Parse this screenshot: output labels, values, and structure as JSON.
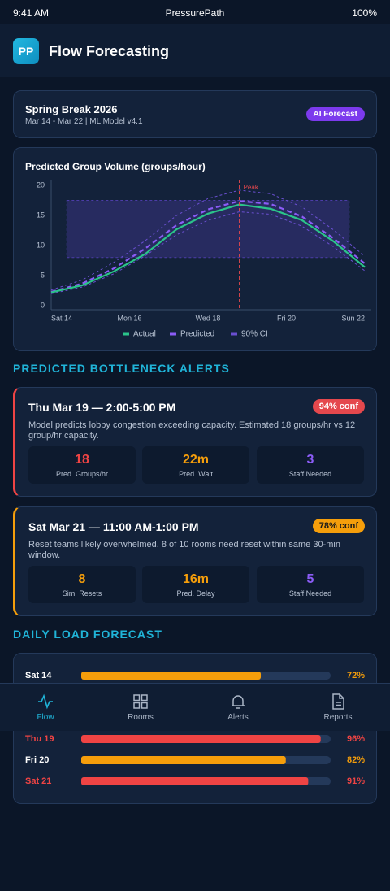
{
  "status_bar": {
    "time": "9:41 AM",
    "app": "PressurePath",
    "battery": "100%"
  },
  "header": {
    "logo": "PP",
    "title": "Flow Forecasting"
  },
  "event": {
    "title": "Spring Break 2026",
    "subtitle": "Mar 14 - Mar 22 | ML Model v4.1",
    "badge": "AI Forecast"
  },
  "chart_data": {
    "type": "line",
    "title": "Predicted Group Volume (groups/hour)",
    "x": [
      0,
      0.8,
      1.6,
      2.4,
      3.2,
      4.0,
      4.8,
      5.6,
      6.4,
      7.2,
      8.0
    ],
    "xlim": [
      0,
      8
    ],
    "xticks": [
      {
        "value": 0,
        "label": "Sat 14"
      },
      {
        "value": 2,
        "label": "Mon 16"
      },
      {
        "value": 4,
        "label": "Wed 18"
      },
      {
        "value": 6,
        "label": "Fri 20"
      },
      {
        "value": 8,
        "label": "Sun 22"
      }
    ],
    "ylim": [
      0,
      20
    ],
    "yticks": [
      0,
      5,
      10,
      15,
      20
    ],
    "band": {
      "x": [
        0.4,
        7.6
      ],
      "y": [
        8,
        17.5
      ],
      "color": "#4c3ca8"
    },
    "annotation": {
      "x": 4.8,
      "label": "Peak",
      "color": "#e5484d"
    },
    "series": [
      {
        "name": "Actual",
        "color": "#2bc48a",
        "style": "solid",
        "values": [
          2.2,
          3.4,
          5.7,
          8.6,
          12.7,
          15.3,
          16.8,
          16.1,
          14.2,
          10.7,
          6.4
        ]
      },
      {
        "name": "Predicted",
        "color": "#8b5cf6",
        "style": "dashed",
        "values": [
          2.3,
          3.7,
          6.2,
          9.5,
          13.4,
          16.0,
          17.4,
          16.9,
          14.8,
          11.2,
          7.0
        ]
      },
      {
        "name": "90% CI",
        "color": "#6a4fd0",
        "style": "dotted",
        "values": [
          2.6,
          4.3,
          7.2,
          10.8,
          15.0,
          17.8,
          19.2,
          18.6,
          16.4,
          12.6,
          8.2
        ],
        "lower": [
          2.0,
          3.1,
          5.3,
          8.3,
          11.8,
          14.2,
          15.6,
          15.2,
          13.2,
          9.8,
          5.8
        ]
      }
    ]
  },
  "alerts_section": "PREDICTED BOTTLENECK ALERTS",
  "alerts": [
    {
      "title": "Thu Mar 19 — 2:00-5:00 PM",
      "confidence": "94% conf",
      "description": "Model predicts lobby congestion exceeding capacity. Estimated 18 groups/hr vs 12 group/hr capacity.",
      "stats": [
        {
          "value": "18",
          "label": "Pred. Groups/hr"
        },
        {
          "value": "22m",
          "label": "Pred. Wait"
        },
        {
          "value": "3",
          "label": "Staff Needed"
        }
      ]
    },
    {
      "title": "Sat Mar 21 — 11:00 AM-1:00 PM",
      "confidence": "78% conf",
      "description": "Reset teams likely overwhelmed. 8 of 10 rooms need reset within same 30-min window.",
      "stats": [
        {
          "value": "8",
          "label": "Sim. Resets"
        },
        {
          "value": "16m",
          "label": "Pred. Delay"
        },
        {
          "value": "5",
          "label": "Staff Needed"
        }
      ]
    }
  ],
  "load_section": "DAILY LOAD FORECAST",
  "load_forecast": {
    "max": 100,
    "rows": [
      {
        "day": "Sat 14",
        "value": 72,
        "value_label": "72%",
        "color": "#f59e0b",
        "day_color": "#ffffff"
      },
      {
        "day": "Thu 19",
        "value": 96,
        "value_label": "96%",
        "color": "#ef4444",
        "day_color": "#ef4444"
      },
      {
        "day": "Fri 20",
        "value": 82,
        "value_label": "82%",
        "color": "#f59e0b",
        "day_color": "#ffffff"
      },
      {
        "day": "Sat 21",
        "value": 91,
        "value_label": "91%",
        "color": "#ef4444",
        "day_color": "#ef4444"
      }
    ]
  },
  "nav": [
    {
      "label": "Flow"
    },
    {
      "label": "Rooms"
    },
    {
      "label": "Alerts"
    },
    {
      "label": "Reports"
    }
  ]
}
